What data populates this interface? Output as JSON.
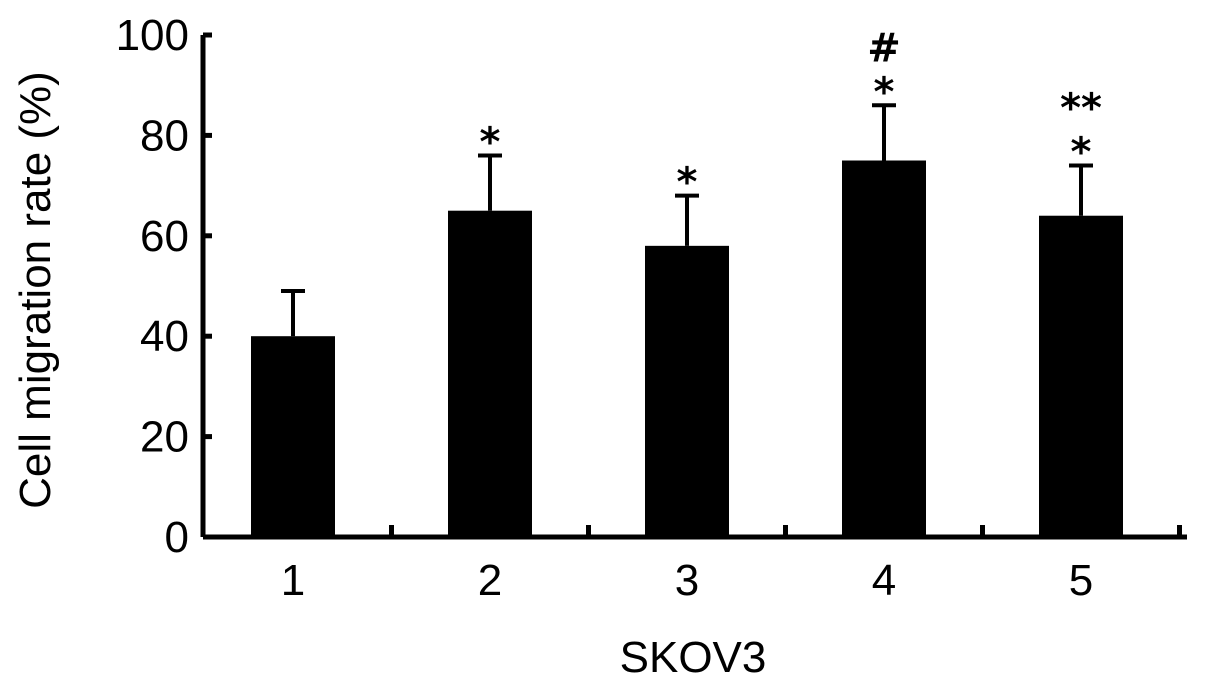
{
  "chart_data": {
    "type": "bar",
    "categories": [
      "1",
      "2",
      "3",
      "4",
      "5"
    ],
    "values": [
      40,
      65,
      58,
      75,
      64
    ],
    "errors": [
      9,
      11,
      10,
      11,
      10
    ],
    "annotations": [
      "",
      "*",
      "*",
      "#\n*",
      "**\n*"
    ],
    "xlabel": "SKOV3",
    "ylabel": "Cell migration rate (%)",
    "ylim": [
      0,
      100
    ],
    "yticks": [
      0,
      20,
      40,
      60,
      80,
      100
    ],
    "grid": false,
    "legend": "none",
    "bar_color": "#000000"
  }
}
